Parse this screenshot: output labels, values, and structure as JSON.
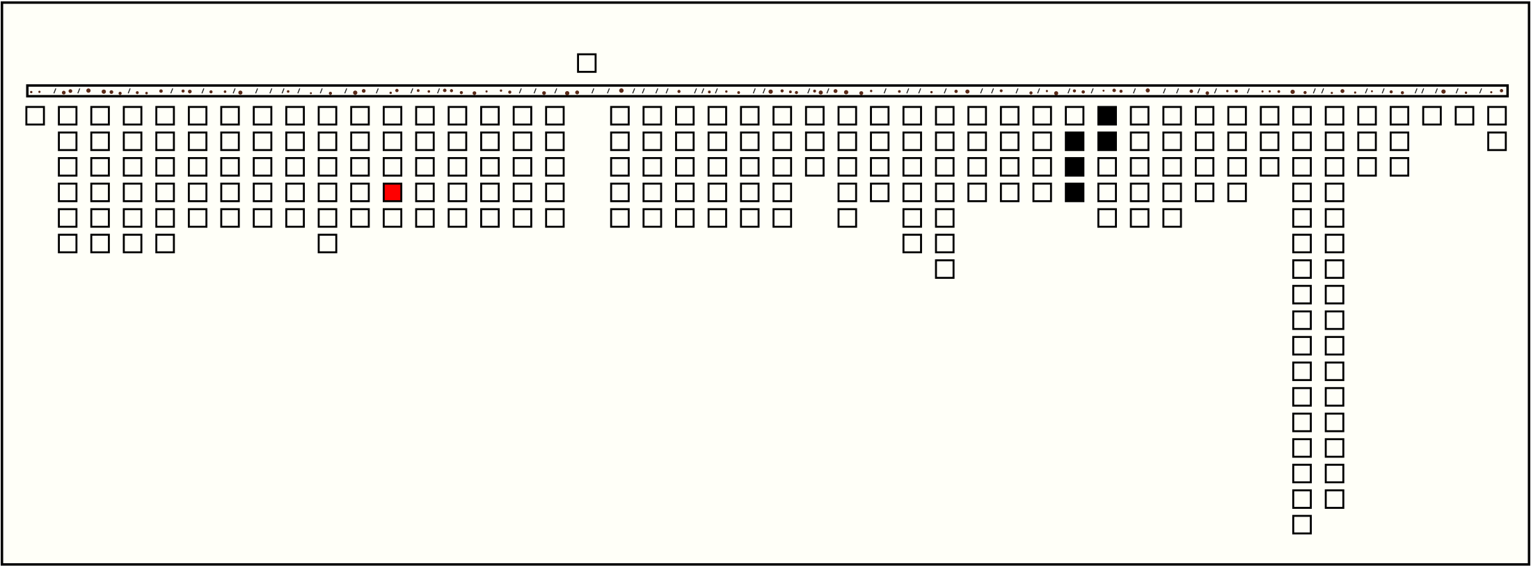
{
  "board": {
    "columns": [
      [
        "#fffff8"
      ],
      [
        "#fffff8",
        "#fffff8",
        "#fffff8",
        "#fffff8",
        "#fffff8",
        "#fffff8"
      ],
      [
        "#fffff8",
        "#fffff8",
        "#fffff8",
        "#fffff8",
        "#fffff8",
        "#fffff8"
      ],
      [
        "#fffff8",
        "#fffff8",
        "#fffff8",
        "#fffff8",
        "#fffff8",
        "#fffff8"
      ],
      [
        "#fffff8",
        "#fffff8",
        "#fffff8",
        "#fffff8",
        "#fffff8",
        "#fffff8"
      ],
      [
        "#fffff8",
        "#fffff8",
        "#fffff8",
        "#fffff8",
        "#fffff8"
      ],
      [
        "#fffff8",
        "#fffff8",
        "#fffff8",
        "#fffff8",
        "#fffff8"
      ],
      [
        "#fffff8",
        "#fffff8",
        "#fffff8",
        "#fffff8",
        "#fffff8"
      ],
      [
        "#fffff8",
        "#fffff8",
        "#fffff8",
        "#fffff8",
        "#fffff8"
      ],
      [
        "#fffff8",
        "#fffff8",
        "#fffff8",
        "#fffff8",
        "#fffff8",
        "#fffff8"
      ],
      [
        "#fffff8",
        "#fffff8",
        "#fffff8",
        "#fffff8",
        "#fffff8"
      ],
      [
        "#fffff8",
        "#fffff8",
        "#fffff8",
        "#ff0000",
        "#fffff8"
      ],
      [
        "#fffff8",
        "#fffff8",
        "#fffff8",
        "#fffff8",
        "#fffff8"
      ],
      [
        "#fffff8",
        "#fffff8",
        "#fffff8",
        "#fffff8",
        "#fffff8"
      ],
      [
        "#fffff8",
        "#fffff8",
        "#fffff8",
        "#fffff8",
        "#fffff8"
      ],
      [
        "#fffff8",
        "#fffff8",
        "#fffff8",
        "#fffff8",
        "#fffff8"
      ],
      [
        "#fffff8",
        "#fffff8",
        "#fffff8",
        "#fffff8",
        "#fffff8"
      ],
      [],
      [
        "#fffff8",
        "#fffff8",
        "#fffff8",
        "#fffff8",
        "#fffff8"
      ],
      [
        "#fffff8",
        "#fffff8",
        "#fffff8",
        "#fffff8",
        "#fffff8"
      ],
      [
        "#fffff8",
        "#fffff8",
        "#fffff8",
        "#fffff8",
        "#fffff8"
      ],
      [
        "#fffff8",
        "#fffff8",
        "#fffff8",
        "#fffff8",
        "#fffff8"
      ],
      [
        "#fffff8",
        "#fffff8",
        "#fffff8",
        "#fffff8",
        "#fffff8"
      ],
      [
        "#fffff8",
        "#fffff8",
        "#fffff8",
        "#fffff8",
        "#fffff8"
      ],
      [
        "#fffff8",
        "#fffff8",
        "#fffff8"
      ],
      [
        "#fffff8",
        "#fffff8",
        "#fffff8",
        "#fffff8",
        "#fffff8"
      ],
      [
        "#fffff8",
        "#fffff8",
        "#fffff8",
        "#fffff8"
      ],
      [
        "#fffff8",
        "#fffff8",
        "#fffff8",
        "#fffff8",
        "#fffff8",
        "#fffff8"
      ],
      [
        "#fffff8",
        "#fffff8",
        "#fffff8",
        "#fffff8",
        "#fffff8",
        "#fffff8",
        "#fffff8"
      ],
      [
        "#fffff8",
        "#fffff8",
        "#fffff8",
        "#fffff8"
      ],
      [
        "#fffff8",
        "#fffff8",
        "#fffff8",
        "#fffff8"
      ],
      [
        "#fffff8",
        "#fffff8",
        "#fffff8",
        "#fffff8"
      ],
      [
        "#fffff8",
        "#000000",
        "#000000",
        "#000000"
      ],
      [
        "#000000",
        "#000000",
        "#fffff8",
        "#fffff8",
        "#fffff8"
      ],
      [
        "#fffff8",
        "#fffff8",
        "#fffff8",
        "#fffff8",
        "#fffff8"
      ],
      [
        "#fffff8",
        "#fffff8",
        "#fffff8",
        "#fffff8",
        "#fffff8"
      ],
      [
        "#fffff8",
        "#fffff8",
        "#fffff8",
        "#fffff8"
      ],
      [
        "#fffff8",
        "#fffff8",
        "#fffff8",
        "#fffff8"
      ],
      [
        "#fffff8",
        "#fffff8",
        "#fffff8"
      ],
      [
        "#fffff8",
        "#fffff8",
        "#fffff8",
        "#fffff8",
        "#fffff8",
        "#fffff8",
        "#fffff8",
        "#fffff8",
        "#fffff8",
        "#fffff8",
        "#fffff8",
        "#fffff8",
        "#fffff8",
        "#fffff8",
        "#fffff8",
        "#fffff8",
        "#fffff8"
      ],
      [
        "#fffff8",
        "#fffff8",
        "#fffff8",
        "#fffff8",
        "#fffff8",
        "#fffff8",
        "#fffff8",
        "#fffff8",
        "#fffff8",
        "#fffff8",
        "#fffff8",
        "#fffff8",
        "#fffff8",
        "#fffff8",
        "#fffff8",
        "#fffff8"
      ],
      [
        "#fffff8",
        "#fffff8",
        "#fffff8"
      ],
      [
        "#fffff8",
        "#fffff8",
        "#fffff8"
      ],
      [
        "#fffff8"
      ],
      [
        "#fffff8"
      ],
      [
        "#fffff8",
        "#fffff8"
      ]
    ]
  }
}
